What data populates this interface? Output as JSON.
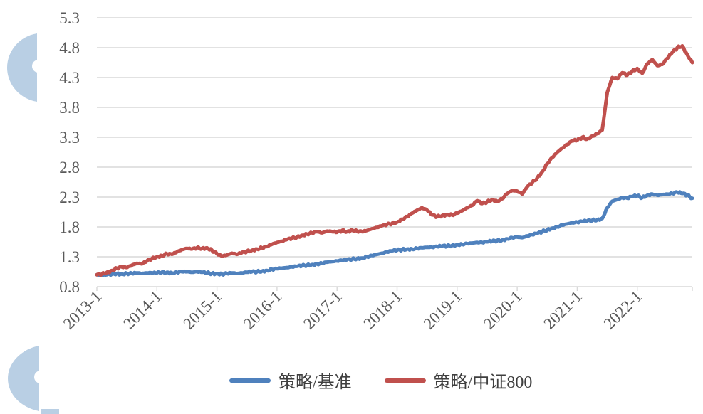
{
  "colors": {
    "background": "#ffffff",
    "grid": "#d9d9d9",
    "axis": "#d9d9d9",
    "tick_label": "#595959",
    "legend_text": "#3f3f3f",
    "watermark": "#b9cfe4",
    "series_blue": "#4f81bd",
    "series_red": "#c0504d"
  },
  "chart_data": {
    "type": "line",
    "title": "",
    "xlabel": "",
    "ylabel": "",
    "ylim": [
      0.8,
      5.3
    ],
    "grid": "horizontal",
    "legend_position": "bottom",
    "x_range_months": [
      "2013-1",
      "2022-12"
    ],
    "x_tick_labels": [
      "2013-1",
      "2014-1",
      "2015-1",
      "2016-1",
      "2017-1",
      "2018-1",
      "2019-1",
      "2020-1",
      "2021-1",
      "2022-1"
    ],
    "y_ticks": [
      0.8,
      1.3,
      1.8,
      2.3,
      2.8,
      3.3,
      3.8,
      4.3,
      4.8,
      5.3
    ],
    "series": [
      {
        "name": "策略/基准",
        "color": "#4f81bd",
        "monthly_values": [
          1.0,
          0.99,
          1.0,
          1.01,
          1.02,
          1.01,
          1.02,
          1.02,
          1.03,
          1.02,
          1.03,
          1.03,
          1.03,
          1.04,
          1.04,
          1.03,
          1.04,
          1.05,
          1.05,
          1.04,
          1.05,
          1.04,
          1.03,
          1.02,
          1.02,
          1.01,
          1.02,
          1.03,
          1.02,
          1.03,
          1.04,
          1.05,
          1.05,
          1.06,
          1.07,
          1.09,
          1.1,
          1.11,
          1.12,
          1.13,
          1.14,
          1.15,
          1.16,
          1.17,
          1.18,
          1.19,
          1.21,
          1.22,
          1.23,
          1.24,
          1.25,
          1.26,
          1.27,
          1.28,
          1.3,
          1.32,
          1.34,
          1.36,
          1.38,
          1.4,
          1.41,
          1.42,
          1.43,
          1.43,
          1.44,
          1.45,
          1.46,
          1.46,
          1.47,
          1.48,
          1.48,
          1.49,
          1.5,
          1.51,
          1.52,
          1.53,
          1.54,
          1.54,
          1.55,
          1.56,
          1.57,
          1.58,
          1.6,
          1.62,
          1.63,
          1.62,
          1.65,
          1.67,
          1.69,
          1.72,
          1.75,
          1.78,
          1.8,
          1.83,
          1.85,
          1.87,
          1.88,
          1.89,
          1.9,
          1.91,
          1.92,
          1.94,
          2.12,
          2.23,
          2.26,
          2.29,
          2.28,
          2.31,
          2.32,
          2.29,
          2.33,
          2.35,
          2.33,
          2.34,
          2.35,
          2.36,
          2.38,
          2.36,
          2.33,
          2.28
        ]
      },
      {
        "name": "策略/中证800",
        "color": "#c0504d",
        "monthly_values": [
          1.0,
          1.01,
          1.04,
          1.07,
          1.11,
          1.13,
          1.12,
          1.16,
          1.19,
          1.18,
          1.23,
          1.27,
          1.3,
          1.32,
          1.35,
          1.34,
          1.38,
          1.42,
          1.44,
          1.43,
          1.45,
          1.44,
          1.45,
          1.41,
          1.35,
          1.31,
          1.33,
          1.36,
          1.34,
          1.37,
          1.39,
          1.41,
          1.43,
          1.45,
          1.47,
          1.51,
          1.54,
          1.56,
          1.59,
          1.61,
          1.63,
          1.66,
          1.68,
          1.7,
          1.72,
          1.7,
          1.73,
          1.72,
          1.71,
          1.74,
          1.72,
          1.75,
          1.73,
          1.72,
          1.74,
          1.77,
          1.79,
          1.82,
          1.84,
          1.86,
          1.88,
          1.93,
          1.97,
          2.03,
          2.08,
          2.12,
          2.08,
          2.0,
          1.97,
          1.99,
          2.01,
          2.0,
          2.03,
          2.07,
          2.12,
          2.16,
          2.24,
          2.19,
          2.22,
          2.26,
          2.23,
          2.27,
          2.36,
          2.41,
          2.4,
          2.35,
          2.47,
          2.54,
          2.62,
          2.72,
          2.86,
          2.96,
          3.05,
          3.12,
          3.18,
          3.24,
          3.25,
          3.3,
          3.27,
          3.32,
          3.36,
          3.42,
          4.05,
          4.3,
          4.28,
          4.38,
          4.34,
          4.41,
          4.45,
          4.37,
          4.53,
          4.6,
          4.5,
          4.52,
          4.62,
          4.72,
          4.8,
          4.83,
          4.68,
          4.55
        ]
      }
    ]
  }
}
